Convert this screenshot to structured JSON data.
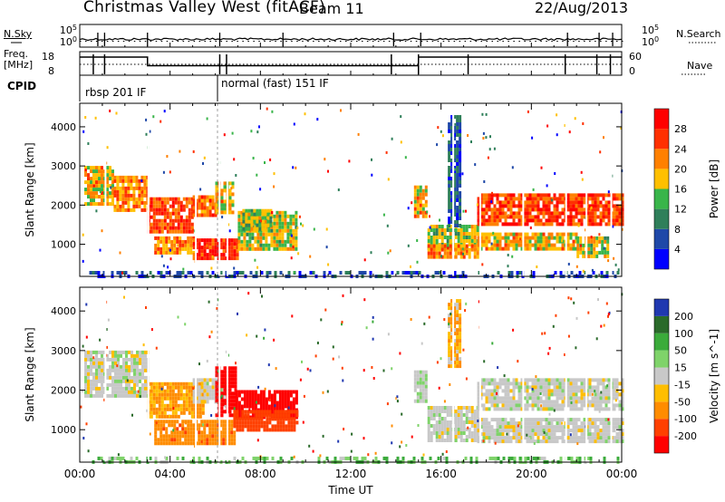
{
  "header": {
    "radar": "Christmas Valley West (fitACF)",
    "beam": "Beam 11",
    "date": "22/Aug/2013"
  },
  "aux_panels": {
    "nsky_label": "N.Sky",
    "nsearch_label": "N.Search",
    "freq_label_1": "Freq.",
    "freq_label_2": "[MHz]",
    "nave_label": "Nave",
    "cpid_label": "CPID",
    "noise_ticks": [
      "10^5",
      "10^0"
    ],
    "noise_ticks_right": [
      "10^5",
      "10^0"
    ],
    "freq_ticks": [
      "18",
      "8"
    ],
    "nave_ticks": [
      "60",
      "0"
    ]
  },
  "cpid": {
    "segments": [
      {
        "label": "rbsp 201 IF",
        "start_hour": 0
      },
      {
        "label": "normal (fast) 151 IF",
        "start_hour": 6.1
      }
    ]
  },
  "chart_data": [
    {
      "type": "heatmap",
      "panel": "power",
      "xlabel": "",
      "ylabel": "Slant Range [km]",
      "xlim": [
        0,
        24
      ],
      "ylim": [
        180,
        4600
      ],
      "yticks": [
        1000,
        2000,
        3000,
        4000
      ],
      "colorbar_label": "Power [dB]",
      "colorbar_ticks": [
        4,
        8,
        12,
        16,
        20,
        24,
        28
      ],
      "colorbar_range": [
        0,
        30
      ],
      "echo_regions": [
        {
          "t0": 0.2,
          "t1": 1.5,
          "r0": 2000,
          "r1": 3000,
          "level": 18
        },
        {
          "t0": 1.5,
          "t1": 3.0,
          "r0": 1850,
          "r1": 2750,
          "level": 20
        },
        {
          "t0": 3.0,
          "t1": 5.0,
          "r0": 1300,
          "r1": 2200,
          "level": 24
        },
        {
          "t0": 5.0,
          "t1": 6.0,
          "r0": 1700,
          "r1": 2250,
          "level": 22
        },
        {
          "t0": 6.0,
          "t1": 6.8,
          "r0": 1850,
          "r1": 2600,
          "level": 18
        },
        {
          "t0": 3.3,
          "t1": 5.0,
          "r0": 820,
          "r1": 1200,
          "level": 20
        },
        {
          "t0": 5.0,
          "t1": 7.0,
          "r0": 650,
          "r1": 1150,
          "level": 26
        },
        {
          "t0": 7.0,
          "t1": 9.6,
          "r0": 850,
          "r1": 1850,
          "level": 16
        },
        {
          "t0": 7.2,
          "t1": 8.5,
          "r0": 1400,
          "r1": 1900,
          "level": 14
        },
        {
          "t0": 14.8,
          "t1": 15.4,
          "r0": 1750,
          "r1": 2500,
          "level": 18
        },
        {
          "t0": 15.4,
          "t1": 17.6,
          "r0": 900,
          "r1": 1500,
          "level": 14
        },
        {
          "t0": 15.4,
          "t1": 17.6,
          "r0": 700,
          "r1": 1000,
          "level": 20
        },
        {
          "t0": 16.3,
          "t1": 16.9,
          "r0": 1500,
          "r1": 4300,
          "level": 6
        },
        {
          "t0": 17.6,
          "t1": 24.0,
          "r0": 1500,
          "r1": 2300,
          "level": 24
        },
        {
          "t0": 17.6,
          "t1": 22.0,
          "r0": 900,
          "r1": 1300,
          "level": 18
        },
        {
          "t0": 22.0,
          "t1": 23.4,
          "r0": 700,
          "r1": 1200,
          "level": 16
        },
        {
          "t0": 0.3,
          "t1": 24.0,
          "r0": 180,
          "r1": 320,
          "level": 6
        }
      ]
    },
    {
      "type": "heatmap",
      "panel": "velocity",
      "xlabel": "Time UT",
      "ylabel": "Slant Range [km]",
      "xlim": [
        0,
        24
      ],
      "ylim": [
        180,
        4600
      ],
      "xticks": [
        "00:00",
        "04:00",
        "08:00",
        "12:00",
        "16:00",
        "20:00",
        "00:00"
      ],
      "yticks": [
        1000,
        2000,
        3000,
        4000
      ],
      "colorbar_label": "Velocity [m s^-1]",
      "colorbar_ticks": [
        "200",
        "100",
        "50",
        "15",
        "-15",
        "-50",
        "-100",
        "-200"
      ],
      "echo_regions": [
        {
          "t0": 0.2,
          "t1": 3.0,
          "r0": 1850,
          "r1": 3000,
          "velocity": 0
        },
        {
          "t0": 3.0,
          "t1": 5.5,
          "r0": 1300,
          "r1": 2200,
          "velocity": -40
        },
        {
          "t0": 5.0,
          "t1": 6.5,
          "r0": 1750,
          "r1": 2300,
          "velocity": 0
        },
        {
          "t0": 6.0,
          "t1": 6.9,
          "r0": 1400,
          "r1": 2600,
          "velocity": -220
        },
        {
          "t0": 6.9,
          "t1": 9.6,
          "r0": 1350,
          "r1": 2000,
          "velocity": -220
        },
        {
          "t0": 3.3,
          "t1": 6.8,
          "r0": 700,
          "r1": 1250,
          "velocity": -60
        },
        {
          "t0": 6.8,
          "t1": 9.6,
          "r0": 1000,
          "r1": 1500,
          "velocity": -110
        },
        {
          "t0": 14.8,
          "t1": 15.4,
          "r0": 1750,
          "r1": 2500,
          "velocity": 5
        },
        {
          "t0": 15.4,
          "t1": 17.6,
          "r0": 700,
          "r1": 1600,
          "velocity": 0
        },
        {
          "t0": 16.3,
          "t1": 16.9,
          "r0": 2600,
          "r1": 4300,
          "velocity": -30
        },
        {
          "t0": 17.6,
          "t1": 24.0,
          "r0": 1500,
          "r1": 2300,
          "velocity": 0
        },
        {
          "t0": 17.6,
          "t1": 24.0,
          "r0": 700,
          "r1": 1300,
          "velocity": 0
        },
        {
          "t0": 0.3,
          "t1": 24.0,
          "r0": 180,
          "r1": 320,
          "velocity": 30
        }
      ]
    }
  ],
  "colors": {
    "power_scale": [
      "#0000ff",
      "#1f48a8",
      "#2f7f5a",
      "#39b54a",
      "#ffc000",
      "#ff8000",
      "#ff3000",
      "#ff0000"
    ],
    "velocity_scale": [
      "#2038b0",
      "#2a6a2a",
      "#3bab3b",
      "#7fd36a",
      "#c8c8c8",
      "#ffbe00",
      "#ff8c00",
      "#ff4000",
      "#ff0000"
    ],
    "ground_scatter": "#c0c0c0"
  }
}
